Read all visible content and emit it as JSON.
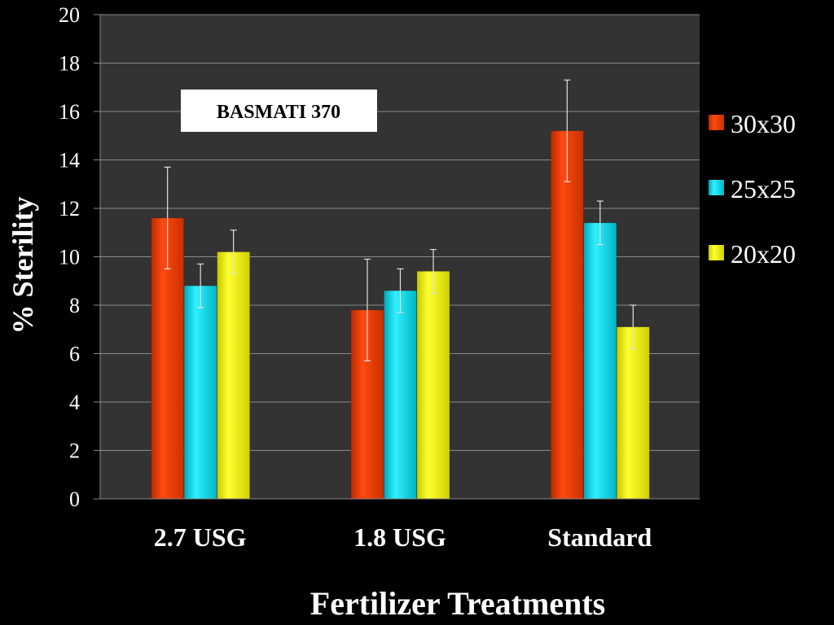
{
  "chart_data": {
    "type": "bar",
    "title": "",
    "annotation": "BASMATI 370",
    "xlabel": "Fertilizer Treatments",
    "ylabel": "% Sterility",
    "ylim": [
      0,
      20
    ],
    "yticks": [
      0,
      2,
      4,
      6,
      8,
      10,
      12,
      14,
      16,
      18,
      20
    ],
    "categories": [
      "2.7 USG",
      "1.8 USG",
      "Standard"
    ],
    "grid": true,
    "legend_position": "right",
    "series": [
      {
        "name": "30x30",
        "color": "#ff3d00",
        "values": [
          11.6,
          7.8,
          15.2
        ],
        "errors": [
          2.1,
          2.1,
          2.1
        ]
      },
      {
        "name": "25x25",
        "color": "#00e5f5",
        "values": [
          8.8,
          8.6,
          11.4
        ],
        "errors": [
          0.9,
          0.9,
          0.9
        ]
      },
      {
        "name": "20x20",
        "color": "#f5f500",
        "values": [
          10.2,
          9.4,
          7.1
        ],
        "errors": [
          0.9,
          0.9,
          0.9
        ]
      }
    ]
  }
}
